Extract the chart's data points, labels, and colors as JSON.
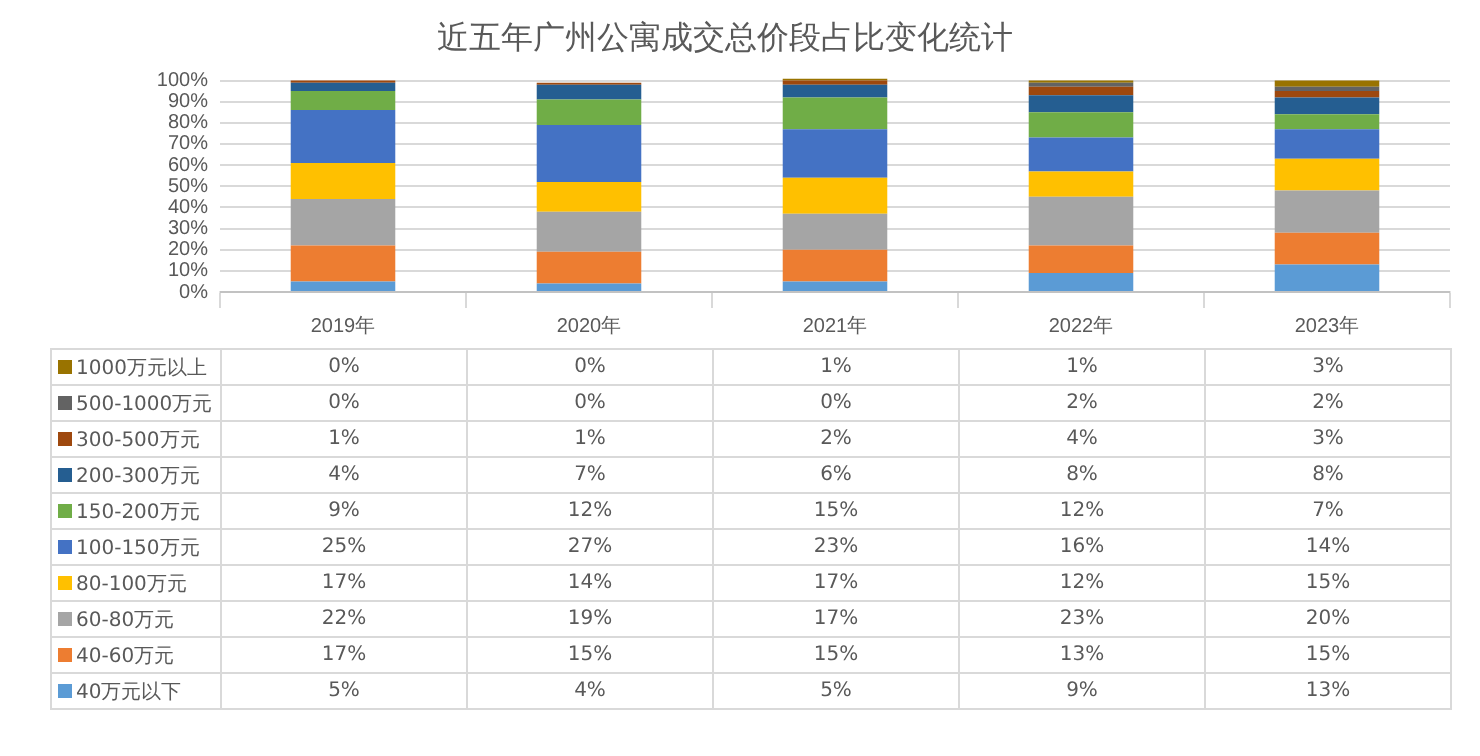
{
  "chart_data": {
    "type": "bar",
    "title": "近五年广州公寓成交总价段占比变化统计",
    "stacked": true,
    "categories": [
      "2019年",
      "2020年",
      "2021年",
      "2022年",
      "2023年"
    ],
    "ylim": [
      0,
      101
    ],
    "yticks": [
      {
        "value": 0,
        "label": "0%"
      },
      {
        "value": 10,
        "label": "10%"
      },
      {
        "value": 20,
        "label": "20%"
      },
      {
        "value": 30,
        "label": "30%"
      },
      {
        "value": 40,
        "label": "40%"
      },
      {
        "value": 50,
        "label": "50%"
      },
      {
        "value": 60,
        "label": "60%"
      },
      {
        "value": 70,
        "label": "70%"
      },
      {
        "value": 80,
        "label": "80%"
      },
      {
        "value": 90,
        "label": "90%"
      },
      {
        "value": 100,
        "label": "100%"
      }
    ],
    "grid": "y",
    "legend": "bottom",
    "series": [
      {
        "name": "40万元以下",
        "color": "#5b9bd5",
        "values": [
          5,
          4,
          5,
          9,
          13
        ],
        "value_labels": [
          "5%",
          "4%",
          "5%",
          "9%",
          "13%"
        ]
      },
      {
        "name": "40-60万元",
        "color": "#ed7d31",
        "values": [
          17,
          15,
          15,
          13,
          15
        ],
        "value_labels": [
          "17%",
          "15%",
          "15%",
          "13%",
          "15%"
        ]
      },
      {
        "name": "60-80万元",
        "color": "#a5a5a5",
        "values": [
          22,
          19,
          17,
          23,
          20
        ],
        "value_labels": [
          "22%",
          "19%",
          "17%",
          "23%",
          "20%"
        ]
      },
      {
        "name": "80-100万元",
        "color": "#ffc000",
        "values": [
          17,
          14,
          17,
          12,
          15
        ],
        "value_labels": [
          "17%",
          "14%",
          "17%",
          "12%",
          "15%"
        ]
      },
      {
        "name": "100-150万元",
        "color": "#4472c4",
        "values": [
          25,
          27,
          23,
          16,
          14
        ],
        "value_labels": [
          "25%",
          "27%",
          "23%",
          "16%",
          "14%"
        ]
      },
      {
        "name": "150-200万元",
        "color": "#70ad47",
        "values": [
          9,
          12,
          15,
          12,
          7
        ],
        "value_labels": [
          "9%",
          "12%",
          "15%",
          "12%",
          "7%"
        ]
      },
      {
        "name": "200-300万元",
        "color": "#255e91",
        "values": [
          4,
          7,
          6,
          8,
          8
        ],
        "value_labels": [
          "4%",
          "7%",
          "6%",
          "8%",
          "8%"
        ]
      },
      {
        "name": "300-500万元",
        "color": "#9e480e",
        "values": [
          1,
          1,
          2,
          4,
          3
        ],
        "value_labels": [
          "1%",
          "1%",
          "2%",
          "4%",
          "3%"
        ]
      },
      {
        "name": "500-1000万元",
        "color": "#636363",
        "values": [
          0,
          0,
          0,
          2,
          2
        ],
        "value_labels": [
          "0%",
          "0%",
          "0%",
          "2%",
          "2%"
        ]
      },
      {
        "name": "1000万元以上",
        "color": "#997300",
        "values": [
          0,
          0,
          1,
          1,
          3
        ],
        "value_labels": [
          "0%",
          "0%",
          "1%",
          "1%",
          "3%"
        ]
      }
    ]
  }
}
